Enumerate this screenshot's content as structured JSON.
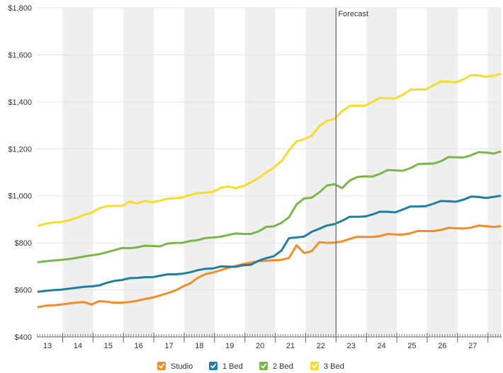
{
  "chart_data": {
    "type": "line",
    "title": "",
    "xlabel": "",
    "ylabel": "",
    "ylim": [
      400,
      1800
    ],
    "xlim": [
      12.65,
      27.95
    ],
    "yticks": [
      400,
      600,
      800,
      1000,
      1200,
      1400,
      1600,
      1800
    ],
    "ytick_labels": [
      "$400",
      "$600",
      "$800",
      "$1,000",
      "$1,200",
      "$1,400",
      "$1,600",
      "$1,800"
    ],
    "x_categories": [
      "13",
      "14",
      "15",
      "16",
      "17",
      "18",
      "19",
      "20",
      "21",
      "22",
      "23",
      "24",
      "25",
      "26",
      "27"
    ],
    "shaded_bands": [
      [
        13.5,
        14.5
      ],
      [
        15.5,
        16.5
      ],
      [
        17.5,
        18.5
      ],
      [
        19.5,
        20.5
      ],
      [
        21.5,
        22.5
      ],
      [
        23.5,
        24.5
      ],
      [
        25.5,
        26.5
      ],
      [
        27.5,
        27.95
      ]
    ],
    "forecast": {
      "label": "Forecast",
      "x": 22.5
    },
    "grid": true,
    "legend_position": "bottom",
    "series": [
      {
        "name": "Studio",
        "color": "#F28C28",
        "x": [
          12.7,
          12.95,
          13.2,
          13.45,
          13.7,
          13.95,
          14.2,
          14.45,
          14.7,
          14.95,
          15.2,
          15.45,
          15.7,
          15.95,
          16.2,
          16.45,
          16.7,
          16.95,
          17.2,
          17.45,
          17.7,
          17.95,
          18.2,
          18.45,
          18.7,
          18.95,
          19.2,
          19.45,
          19.7,
          19.95,
          20.2,
          20.45,
          20.7,
          20.95,
          21.2,
          21.45,
          21.7,
          21.95,
          22.2,
          22.45,
          22.7,
          22.95,
          23.2,
          23.45,
          23.7,
          23.95,
          24.2,
          24.45,
          24.7,
          24.95,
          25.2,
          25.45,
          25.7,
          25.95,
          26.2,
          26.45,
          26.7,
          26.95,
          27.2,
          27.45,
          27.7,
          27.9
        ],
        "values": [
          527,
          533,
          535,
          538,
          542,
          546,
          548,
          538,
          552,
          550,
          545,
          546,
          548,
          554,
          561,
          567,
          576,
          586,
          597,
          614,
          628,
          652,
          667,
          674,
          684,
          694,
          702,
          710,
          716,
          722,
          724,
          726,
          728,
          736,
          790,
          757,
          765,
          803,
          800,
          801,
          806,
          817,
          826,
          825,
          825,
          829,
          838,
          836,
          835,
          841,
          851,
          850,
          850,
          855,
          864,
          862,
          861,
          865,
          874,
          871,
          868,
          871
        ]
      },
      {
        "name": "1 Bed",
        "color": "#1F7EA1",
        "x": [
          12.7,
          12.95,
          13.2,
          13.45,
          13.7,
          13.95,
          14.2,
          14.45,
          14.7,
          14.95,
          15.2,
          15.45,
          15.7,
          15.95,
          16.2,
          16.45,
          16.7,
          16.95,
          17.2,
          17.45,
          17.7,
          17.95,
          18.2,
          18.45,
          18.7,
          18.95,
          19.2,
          19.45,
          19.7,
          19.95,
          20.2,
          20.45,
          20.7,
          20.95,
          21.2,
          21.45,
          21.7,
          21.95,
          22.2,
          22.45,
          22.7,
          22.95,
          23.2,
          23.45,
          23.7,
          23.95,
          24.2,
          24.45,
          24.7,
          24.95,
          25.2,
          25.45,
          25.7,
          25.95,
          26.2,
          26.45,
          26.7,
          26.95,
          27.2,
          27.45,
          27.7,
          27.9
        ],
        "values": [
          592,
          596,
          599,
          601,
          605,
          609,
          613,
          615,
          619,
          630,
          638,
          642,
          650,
          651,
          654,
          654,
          660,
          666,
          666,
          669,
          675,
          684,
          690,
          691,
          700,
          699,
          698,
          705,
          707,
          724,
          735,
          743,
          767,
          820,
          823,
          827,
          847,
          860,
          874,
          880,
          894,
          911,
          911,
          912,
          921,
          933,
          932,
          930,
          942,
          955,
          955,
          956,
          966,
          978,
          977,
          975,
          984,
          997,
          995,
          991,
          996,
          1000
        ]
      },
      {
        "name": "2 Bed",
        "color": "#7AB648",
        "x": [
          12.7,
          12.95,
          13.2,
          13.45,
          13.7,
          13.95,
          14.2,
          14.45,
          14.7,
          14.95,
          15.2,
          15.45,
          15.7,
          15.95,
          16.2,
          16.45,
          16.7,
          16.95,
          17.2,
          17.45,
          17.7,
          17.95,
          18.2,
          18.45,
          18.7,
          18.95,
          19.2,
          19.45,
          19.7,
          19.95,
          20.2,
          20.45,
          20.7,
          20.95,
          21.2,
          21.45,
          21.7,
          21.95,
          22.2,
          22.45,
          22.7,
          22.95,
          23.2,
          23.45,
          23.7,
          23.95,
          24.2,
          24.45,
          24.7,
          24.95,
          25.2,
          25.45,
          25.7,
          25.95,
          26.2,
          26.45,
          26.7,
          26.95,
          27.2,
          27.45,
          27.7,
          27.9
        ],
        "values": [
          718,
          722,
          725,
          728,
          731,
          736,
          742,
          747,
          752,
          760,
          769,
          778,
          777,
          781,
          788,
          787,
          785,
          797,
          800,
          800,
          808,
          812,
          821,
          823,
          826,
          834,
          840,
          838,
          838,
          849,
          868,
          870,
          885,
          909,
          964,
          989,
          992,
          1015,
          1044,
          1049,
          1033,
          1065,
          1080,
          1083,
          1082,
          1094,
          1110,
          1108,
          1107,
          1118,
          1135,
          1137,
          1137,
          1147,
          1165,
          1164,
          1163,
          1173,
          1186,
          1184,
          1180,
          1188
        ]
      },
      {
        "name": "3 Bed",
        "color": "#F7DC2A",
        "x": [
          12.7,
          12.95,
          13.2,
          13.45,
          13.7,
          13.95,
          14.2,
          14.45,
          14.7,
          14.95,
          15.2,
          15.45,
          15.7,
          15.95,
          16.2,
          16.45,
          16.7,
          16.95,
          17.2,
          17.45,
          17.7,
          17.95,
          18.2,
          18.45,
          18.7,
          18.95,
          19.2,
          19.45,
          19.7,
          19.95,
          20.2,
          20.45,
          20.7,
          20.95,
          21.2,
          21.45,
          21.7,
          21.95,
          22.2,
          22.45,
          22.7,
          22.95,
          23.2,
          23.45,
          23.7,
          23.95,
          24.2,
          24.45,
          24.7,
          24.95,
          25.2,
          25.45,
          25.7,
          25.95,
          26.2,
          26.45,
          26.7,
          26.95,
          27.2,
          27.45,
          27.7,
          27.9
        ],
        "values": [
          873,
          882,
          887,
          889,
          896,
          906,
          919,
          928,
          947,
          956,
          958,
          957,
          975,
          968,
          978,
          973,
          979,
          988,
          990,
          993,
          1004,
          1012,
          1014,
          1017,
          1034,
          1040,
          1033,
          1042,
          1058,
          1076,
          1099,
          1120,
          1148,
          1194,
          1232,
          1241,
          1256,
          1296,
          1319,
          1327,
          1360,
          1382,
          1383,
          1384,
          1400,
          1417,
          1415,
          1414,
          1430,
          1452,
          1453,
          1452,
          1469,
          1487,
          1485,
          1483,
          1496,
          1514,
          1512,
          1507,
          1511,
          1519
        ]
      }
    ]
  }
}
